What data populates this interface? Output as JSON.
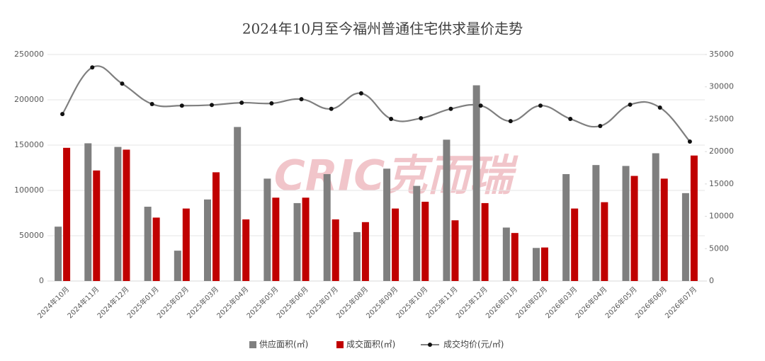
{
  "chart_data": {
    "type": "bar-line",
    "title": "2024年10月至今福州普通住宅供求量价走势",
    "watermark": "CRIC克而瑞",
    "categories": [
      "2024年10月",
      "2024年11月",
      "2024年12月",
      "2025年01月",
      "2025年02月",
      "2025年03月",
      "2025年04月",
      "2025年05月",
      "2025年06月",
      "2025年07月",
      "2025年08月",
      "2025年09月",
      "2025年10月",
      "2025年11月",
      "2025年12月",
      "2026年01月",
      "2026年02月",
      "2026年03月",
      "2026年04月",
      "2026年05月",
      "2026年06月",
      "2026年07月"
    ],
    "series": [
      {
        "name": "供应面积(㎡)",
        "color": "#7f7f7f",
        "kind": "bar",
        "values": [
          60000,
          152000,
          148000,
          82000,
          33500,
          90000,
          170000,
          113000,
          86000,
          118000,
          54000,
          124000,
          105000,
          156000,
          216000,
          59000,
          36500,
          118000,
          128000,
          127000,
          141000,
          97000
        ]
      },
      {
        "name": "成交面积(㎡)",
        "color": "#c00000",
        "kind": "bar",
        "values": [
          147000,
          122000,
          145000,
          70000,
          80000,
          120000,
          68000,
          92000,
          92000,
          68000,
          65000,
          80000,
          87500,
          67000,
          86000,
          53000,
          37000,
          80000,
          87000,
          116000,
          113000,
          138500
        ]
      },
      {
        "name": "成交均价(元/㎡)",
        "color": "#7f7f7f",
        "kind": "line",
        "axis": "y2",
        "values": [
          25800,
          33000,
          30500,
          27350,
          27100,
          27200,
          27550,
          27450,
          28100,
          26600,
          29000,
          25050,
          25150,
          26600,
          27100,
          24700,
          27100,
          25050,
          23950,
          27250,
          26800,
          21550
        ]
      }
    ],
    "ylim": [
      0,
      250000
    ],
    "yticks": [
      0,
      50000,
      100000,
      150000,
      200000,
      250000
    ],
    "y2lim": [
      0,
      35000
    ],
    "y2ticks": [
      0,
      5000,
      10000,
      15000,
      20000,
      25000,
      30000,
      35000
    ],
    "grid": true,
    "legend": "bottom"
  }
}
